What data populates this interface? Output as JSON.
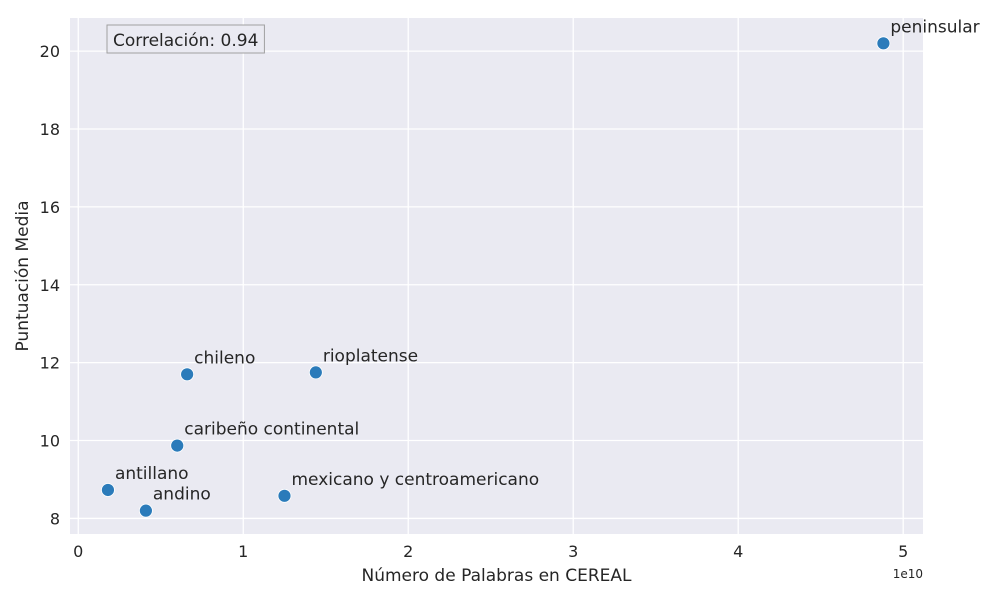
{
  "chart_data": {
    "type": "scatter",
    "title": "",
    "xlabel": "Número de Palabras en CEREAL",
    "ylabel": "Puntuación Media",
    "x_offset_label": "1e10",
    "xlim": [
      -0.05,
      5.12
    ],
    "ylim": [
      7.6,
      20.85
    ],
    "x_ticks": [
      0,
      1,
      2,
      3,
      4,
      5
    ],
    "x_tick_labels": [
      "0",
      "1",
      "2",
      "3",
      "4",
      "5"
    ],
    "y_ticks": [
      8,
      10,
      12,
      14,
      16,
      18,
      20
    ],
    "y_tick_labels": [
      "8",
      "10",
      "12",
      "14",
      "16",
      "18",
      "20"
    ],
    "grid": true,
    "annotation": "Correlación: 0.94",
    "points": [
      {
        "label": "peninsular",
        "x": 4.88,
        "y": 20.2
      },
      {
        "label": "rioplatense",
        "x": 1.44,
        "y": 11.75
      },
      {
        "label": "chileno",
        "x": 0.66,
        "y": 11.7
      },
      {
        "label": "caribeño continental",
        "x": 0.6,
        "y": 9.87
      },
      {
        "label": "antillano",
        "x": 0.18,
        "y": 8.73
      },
      {
        "label": "mexicano y centroamericano",
        "x": 1.25,
        "y": 8.58
      },
      {
        "label": "andino",
        "x": 0.41,
        "y": 8.2
      }
    ],
    "colors": {
      "point": "#2b7bba",
      "plot_background": "#eaeaf2",
      "grid": "#ffffff"
    }
  }
}
